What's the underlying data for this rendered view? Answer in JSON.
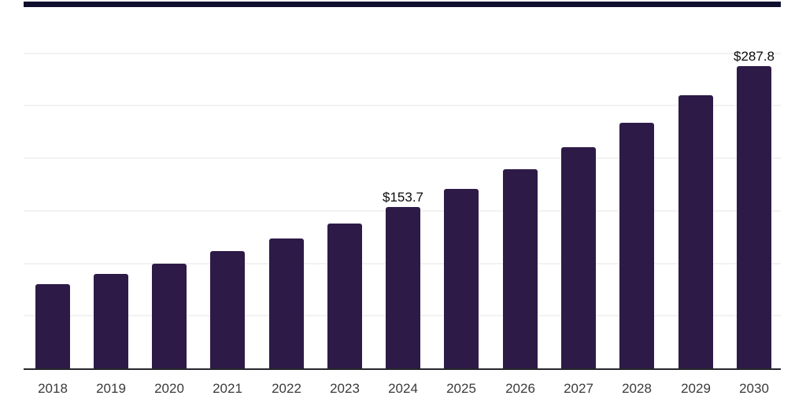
{
  "page": {
    "background": "#ffffff",
    "top_accent_color": "#10102e"
  },
  "chart_data": {
    "type": "bar",
    "title": "",
    "xlabel": "",
    "ylabel": "",
    "categories": [
      "2018",
      "2019",
      "2020",
      "2021",
      "2022",
      "2023",
      "2024",
      "2025",
      "2026",
      "2027",
      "2028",
      "2029",
      "2030"
    ],
    "values": [
      80.2,
      89.9,
      99.7,
      111.7,
      123.7,
      137.9,
      153.7,
      170.9,
      189.6,
      210.6,
      233.8,
      260.1,
      287.8
    ],
    "value_labels": [
      {
        "category": "2024",
        "text": "$153.7"
      },
      {
        "category": "2030",
        "text": "$287.8"
      }
    ],
    "ylim": [
      0,
      350
    ],
    "gridline_step": 50,
    "grid_on": true,
    "legend_position": "none",
    "bar_color": "#2e1a47",
    "grid_color": "#f2f2f2",
    "axis_line_color": "#26262b",
    "tick_label_color": "#3a3a3a",
    "value_label_color": "#0a0a0a"
  }
}
